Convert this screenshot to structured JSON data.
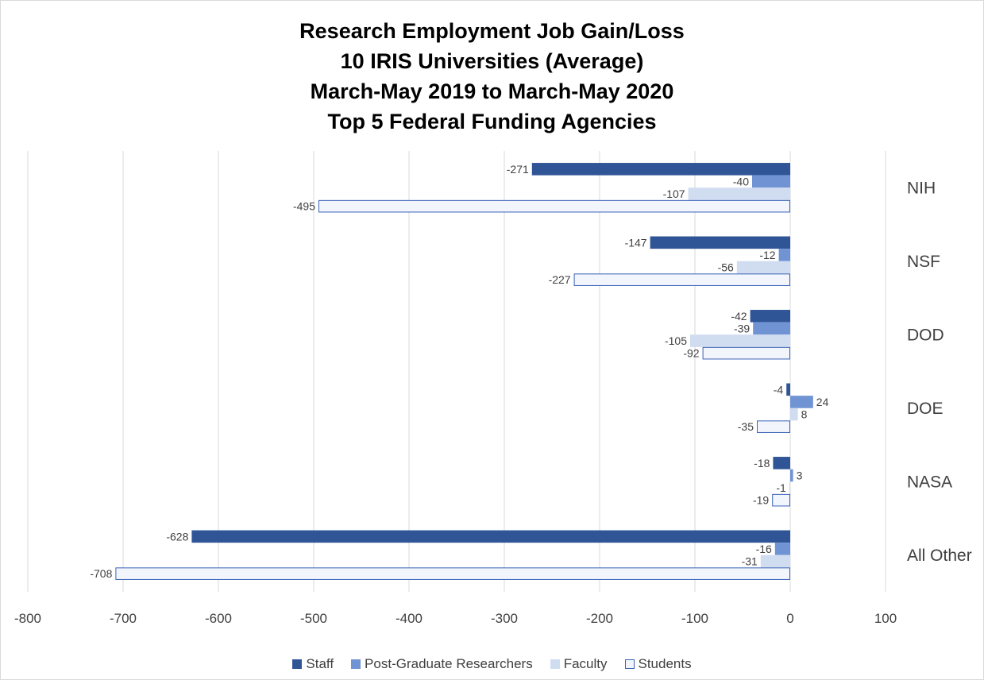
{
  "chart_data": {
    "type": "bar",
    "orientation": "horizontal",
    "title_lines": [
      "Research Employment Job Gain/Loss",
      "10 IRIS Universities (Average)",
      "March-May 2019 to March-May 2020",
      "Top 5 Federal Funding Agencies"
    ],
    "categories": [
      "NIH",
      "NSF",
      "DOD",
      "DOE",
      "NASA",
      "All Other"
    ],
    "series": [
      {
        "name": "Staff",
        "values": [
          -271,
          -147,
          -42,
          -4,
          -18,
          -628
        ]
      },
      {
        "name": "Post-Graduate Researchers",
        "values": [
          -40,
          -12,
          -39,
          24,
          3,
          -16
        ]
      },
      {
        "name": "Faculty",
        "values": [
          -107,
          -56,
          -105,
          8,
          -1,
          -31
        ]
      },
      {
        "name": "Students",
        "values": [
          -495,
          -227,
          -92,
          -35,
          -19,
          -708
        ]
      }
    ],
    "xlim": [
      -800,
      100
    ],
    "x_ticks": [
      "-800",
      "-700",
      "-600",
      "-500",
      "-400",
      "-300",
      "-200",
      "-100",
      "0",
      "100"
    ],
    "grid": true,
    "legend_position": "bottom",
    "colors": {
      "Staff": "#2f5597",
      "Post-Graduate Researchers": "#7093d4",
      "Faculty": "#d0dcf0",
      "Students": "#f2f5fc",
      "students_border": "#3a63b8",
      "grid": "#d9d9d9",
      "axis_text": "#404040"
    }
  }
}
